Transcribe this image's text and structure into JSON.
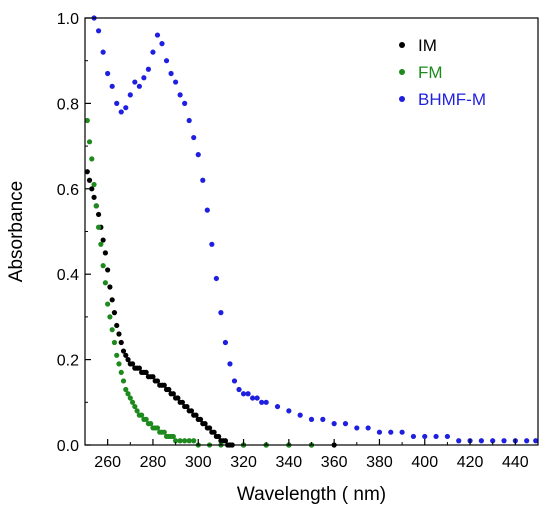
{
  "chart_data": {
    "type": "scatter",
    "title": "",
    "xlabel": "Wavelength ( nm)",
    "ylabel": "Absorbance",
    "xlim": [
      250,
      450
    ],
    "ylim": [
      0,
      1.0
    ],
    "x_ticks": [
      260,
      280,
      300,
      320,
      340,
      360,
      380,
      400,
      420,
      440
    ],
    "y_ticks": [
      0.0,
      0.2,
      0.4,
      0.6,
      0.8,
      1.0
    ],
    "x_tick_labels": [
      "260",
      "280",
      "300",
      "320",
      "340",
      "360",
      "380",
      "400",
      "420",
      "440"
    ],
    "y_tick_labels": [
      "0.0",
      "0.2",
      "0.4",
      "0.6",
      "0.8",
      "1.0"
    ],
    "grid": false,
    "legend_position": "top-right",
    "series": [
      {
        "name": "IM",
        "color": "#000000",
        "x": [
          251,
          252,
          253,
          254,
          255,
          256,
          257,
          258,
          259,
          260,
          261,
          262,
          263,
          264,
          265,
          266,
          267,
          268,
          269,
          270,
          271,
          272,
          273,
          274,
          275,
          276,
          277,
          278,
          279,
          280,
          281,
          282,
          283,
          284,
          285,
          286,
          287,
          288,
          289,
          290,
          291,
          292,
          293,
          294,
          295,
          296,
          297,
          298,
          299,
          300,
          301,
          302,
          303,
          304,
          305,
          306,
          307,
          308,
          309,
          310,
          311,
          312,
          313,
          314,
          315,
          320,
          330,
          340,
          350,
          360
        ],
        "y": [
          0.64,
          0.62,
          0.6,
          0.58,
          0.56,
          0.54,
          0.51,
          0.48,
          0.45,
          0.41,
          0.37,
          0.34,
          0.31,
          0.28,
          0.26,
          0.24,
          0.22,
          0.21,
          0.2,
          0.19,
          0.19,
          0.18,
          0.18,
          0.18,
          0.17,
          0.17,
          0.17,
          0.16,
          0.16,
          0.16,
          0.15,
          0.15,
          0.14,
          0.14,
          0.14,
          0.13,
          0.13,
          0.12,
          0.12,
          0.11,
          0.11,
          0.1,
          0.1,
          0.09,
          0.09,
          0.08,
          0.08,
          0.07,
          0.07,
          0.06,
          0.06,
          0.05,
          0.05,
          0.04,
          0.04,
          0.03,
          0.03,
          0.02,
          0.02,
          0.01,
          0.01,
          0.01,
          0.0,
          0.0,
          0.0,
          0.0,
          0.0,
          0.0,
          0.0,
          0.0
        ]
      },
      {
        "name": "FM",
        "color": "#1e8a1e",
        "x": [
          251,
          252,
          253,
          254,
          255,
          256,
          257,
          258,
          259,
          260,
          261,
          262,
          263,
          264,
          265,
          266,
          267,
          268,
          269,
          270,
          271,
          272,
          273,
          274,
          275,
          276,
          277,
          278,
          279,
          280,
          281,
          282,
          283,
          284,
          285,
          286,
          287,
          288,
          289,
          290,
          292,
          294,
          296,
          298,
          300,
          305,
          310,
          320,
          330,
          340,
          350
        ],
        "y": [
          0.76,
          0.71,
          0.67,
          0.61,
          0.56,
          0.51,
          0.47,
          0.42,
          0.38,
          0.33,
          0.3,
          0.27,
          0.24,
          0.21,
          0.19,
          0.17,
          0.15,
          0.13,
          0.12,
          0.11,
          0.1,
          0.09,
          0.08,
          0.07,
          0.07,
          0.06,
          0.06,
          0.05,
          0.05,
          0.04,
          0.04,
          0.04,
          0.03,
          0.03,
          0.03,
          0.02,
          0.02,
          0.02,
          0.02,
          0.01,
          0.01,
          0.01,
          0.01,
          0.01,
          0.0,
          0.0,
          0.0,
          0.0,
          0.0,
          0.0,
          0.0
        ]
      },
      {
        "name": "BHMF-M",
        "color": "#1f1fe0",
        "x": [
          254,
          256,
          258,
          260,
          262,
          264,
          266,
          268,
          270,
          272,
          274,
          276,
          278,
          280,
          282,
          284,
          286,
          288,
          290,
          292,
          294,
          296,
          298,
          300,
          302,
          304,
          306,
          308,
          310,
          312,
          314,
          316,
          318,
          320,
          322,
          324,
          326,
          328,
          330,
          335,
          340,
          345,
          350,
          355,
          360,
          365,
          370,
          375,
          380,
          385,
          390,
          395,
          400,
          405,
          410,
          415,
          420,
          425,
          430,
          435,
          440,
          445,
          449
        ],
        "y": [
          1.0,
          0.97,
          0.92,
          0.87,
          0.84,
          0.8,
          0.78,
          0.79,
          0.82,
          0.85,
          0.84,
          0.86,
          0.88,
          0.92,
          0.96,
          0.94,
          0.9,
          0.87,
          0.85,
          0.82,
          0.8,
          0.76,
          0.72,
          0.68,
          0.62,
          0.55,
          0.47,
          0.39,
          0.31,
          0.24,
          0.19,
          0.15,
          0.13,
          0.12,
          0.12,
          0.11,
          0.11,
          0.1,
          0.1,
          0.09,
          0.08,
          0.07,
          0.06,
          0.06,
          0.05,
          0.05,
          0.04,
          0.04,
          0.03,
          0.03,
          0.03,
          0.02,
          0.02,
          0.02,
          0.02,
          0.01,
          0.01,
          0.01,
          0.01,
          0.01,
          0.01,
          0.01,
          0.01
        ]
      }
    ]
  }
}
